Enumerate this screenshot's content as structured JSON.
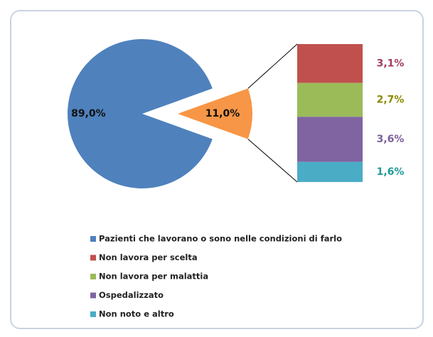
{
  "chart_data": {
    "type": "pie",
    "categories": [
      "Pazienti che lavorano o sono nelle condizioni di farlo",
      null
    ],
    "values": [
      89.0,
      11.0
    ],
    "value_labels": [
      "89,0%",
      "11,0%"
    ],
    "colors": [
      "#4f81bd",
      "#f79646"
    ],
    "bar": {
      "series": [
        {
          "name": "Non lavora per scelta",
          "color": "#c0504d",
          "label_color": "#a53b5e",
          "values": [
            3.1
          ],
          "value_labels": [
            "3,1%"
          ]
        },
        {
          "name": "Non lavora per malattia",
          "color": "#9bbb59",
          "label_color": "#8c8a00",
          "values": [
            2.7
          ],
          "value_labels": [
            "2,7%"
          ]
        },
        {
          "name": "Ospedalizzato",
          "color": "#8064a2",
          "label_color": "#7b5e9c",
          "values": [
            3.6
          ],
          "value_labels": [
            "3,6%"
          ]
        },
        {
          "name": "Non noto e altro",
          "color": "#4bacc6",
          "label_color": "#1e9a9a",
          "values": [
            1.6
          ],
          "value_labels": [
            "1,6%"
          ]
        }
      ]
    }
  }
}
